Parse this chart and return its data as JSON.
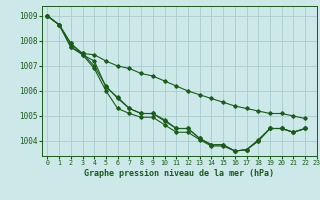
{
  "title": "Graphe pression niveau de la mer (hPa)",
  "bg_color": "#cce8e8",
  "line_color": "#1a5c1a",
  "grid_color": "#aacccc",
  "xlim": [
    -0.5,
    23
  ],
  "ylim": [
    1003.4,
    1009.4
  ],
  "yticks": [
    1004,
    1005,
    1006,
    1007,
    1008,
    1009
  ],
  "xticks": [
    0,
    1,
    2,
    3,
    4,
    5,
    6,
    7,
    8,
    9,
    10,
    11,
    12,
    13,
    14,
    15,
    16,
    17,
    18,
    19,
    20,
    21,
    22,
    23
  ],
  "series": [
    [
      1009.0,
      1008.65,
      1007.9,
      1007.5,
      1007.0,
      1006.2,
      1005.7,
      1005.3,
      1005.1,
      1005.1,
      1004.85,
      1004.5,
      1004.5,
      1004.1,
      1003.85,
      1003.85,
      1003.6,
      1003.65,
      1004.0,
      1004.5,
      1004.5,
      1004.35,
      1004.5
    ],
    [
      1009.0,
      1008.65,
      1007.9,
      1007.45,
      1006.9,
      1006.0,
      1005.3,
      1005.1,
      1004.95,
      1004.95,
      1004.65,
      1004.35,
      1004.35,
      1004.05,
      1003.8,
      1003.8,
      1003.6,
      1003.65,
      1004.0,
      1004.5,
      1004.5,
      1004.35,
      1004.5
    ],
    [
      1009.0,
      1008.65,
      1007.75,
      1007.45,
      1007.2,
      1006.15,
      1005.75,
      1005.3,
      1005.1,
      1005.1,
      1004.8,
      1004.5,
      1004.5,
      1004.1,
      1003.85,
      1003.85,
      1003.6,
      1003.65,
      1004.05,
      1004.5,
      1004.5,
      1004.35,
      1004.5
    ],
    [
      1009.0,
      1008.65,
      1007.75,
      1007.5,
      1007.45,
      1007.2,
      1007.0,
      1006.9,
      1006.7,
      1006.6,
      1006.4,
      1006.2,
      1006.0,
      1005.85,
      1005.7,
      1005.55,
      1005.4,
      1005.3,
      1005.2,
      1005.1,
      1005.1,
      1005.0,
      1004.9
    ]
  ]
}
